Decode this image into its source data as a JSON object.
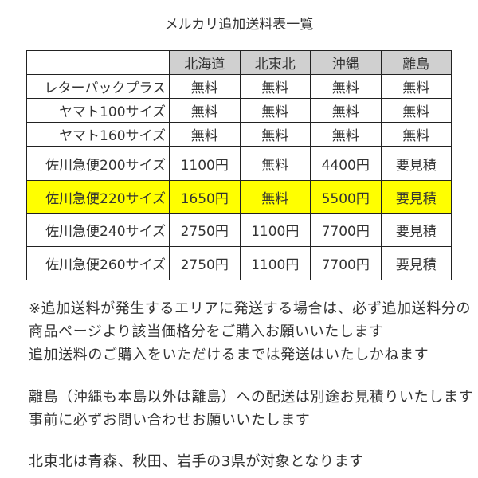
{
  "title": "メルカリ追加送料表一覧",
  "table": {
    "columns": [
      "",
      "北海道",
      "北東北",
      "沖縄",
      "離島"
    ],
    "rows": [
      {
        "label": "レターパックプラス",
        "values": [
          "無料",
          "無料",
          "無料",
          "無料"
        ],
        "highlight": false
      },
      {
        "label": "ヤマト100サイズ",
        "values": [
          "無料",
          "無料",
          "無料",
          "無料"
        ],
        "highlight": false
      },
      {
        "label": "ヤマト160サイズ",
        "values": [
          "無料",
          "無料",
          "無料",
          "無料"
        ],
        "highlight": false
      },
      {
        "label": "佐川急便200サイズ",
        "values": [
          "1100円",
          "無料",
          "4400円",
          "要見積"
        ],
        "highlight": false
      },
      {
        "label": "佐川急便220サイズ",
        "values": [
          "1650円",
          "無料",
          "5500円",
          "要見積"
        ],
        "highlight": true
      },
      {
        "label": "佐川急便240サイズ",
        "values": [
          "2750円",
          "1100円",
          "7700円",
          "要見積"
        ],
        "highlight": false
      },
      {
        "label": "佐川急便260サイズ",
        "values": [
          "2750円",
          "1100円",
          "7700円",
          "要見積"
        ],
        "highlight": false
      }
    ],
    "header_color": "#d0d0d0",
    "highlight_color": "#ffff00"
  },
  "notes": [
    "※追加送料が発生するエリアに発送する場合は、必ず追加送料分の",
    "商品ページより該当価格分をご購入お願いいたします",
    "追加送料のご購入をいただけるまでは発送はいたしかねます",
    "離島（沖縄も本島以外は離島）への配送は別途お見積りいたします",
    "事前に必ずお問い合わせお願いいたします",
    "北東北は青森、秋田、岩手の3県が対象となります"
  ]
}
